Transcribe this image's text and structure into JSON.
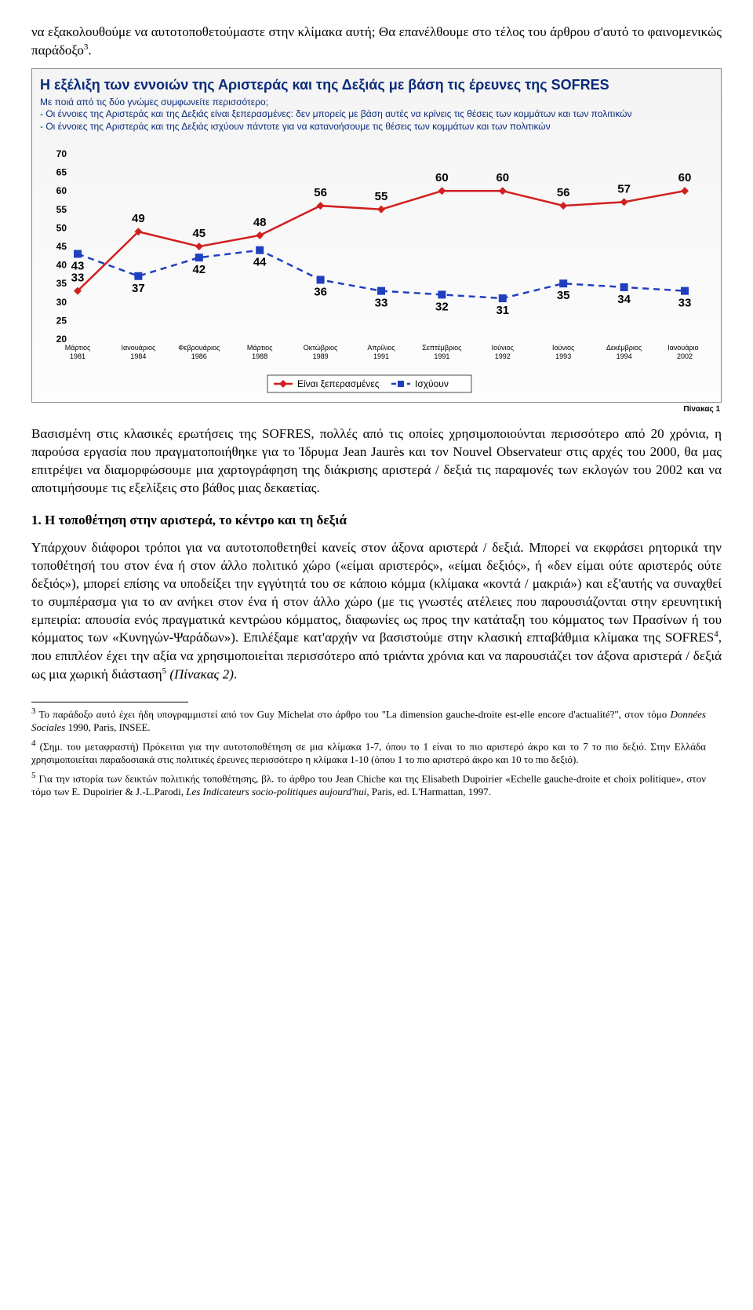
{
  "intro_para": "να εξακολουθούμε να αυτοτοποθετούμαστε στην κλίμακα αυτή; Θα επανέλθουμε στο τέλος του άρθρου σ'αυτό το φαινομενικώς παράδοξο",
  "intro_fn_mark": "3",
  "intro_period": ".",
  "chart": {
    "title": "Η εξέλιξη των εννοιών της Αριστεράς και της Δεξιάς με βάση τις έρευνες της SOFRES",
    "sub1": "Με ποιά από τις δύο γνώμες συμφωνείτε περισσότερο;",
    "sub2": "- Οι έννοιες της Αριστεράς και της Δεξιάς είναι ξεπερασμένες: δεν μπορείς με βάση αυτές να κρίνεις τις θέσεις των κομμάτων και των πολιτικών",
    "sub3": "- Οι έννοιες της Αριστεράς και της Δεξιάς ισχύουν πάντοτε για να κατανοήσουμε τις θέσεις των κομμάτων και των πολιτικών",
    "categories": [
      "Μάρτιος 1981",
      "Ιανουάριος 1984",
      "Φεβρουάριος 1986",
      "Μάρτιος 1988",
      "Οκτώβριος 1989",
      "Απρίλιος 1991",
      "Σεπτέμβριος 1991",
      "Ιούνιος 1992",
      "Ιούνιος 1993",
      "Δεκέμβριος 1994",
      "Ιανουάριος 2002"
    ],
    "series1_name": "Είναι ξεπερασμένες",
    "series1_values": [
      33,
      49,
      45,
      48,
      56,
      55,
      60,
      60,
      56,
      57,
      60
    ],
    "series1_color": "#d21f1f",
    "series2_name": "Ισχύουν",
    "series2_values": [
      43,
      37,
      42,
      44,
      36,
      33,
      32,
      31,
      35,
      34,
      33
    ],
    "series2_color": "#1f3fbf",
    "ymin": 20,
    "ymax": 70,
    "ystep": 5,
    "line_width": 2.5,
    "marker_size": 5,
    "bg": "#ffffff"
  },
  "table_label": "Πίνακας 1",
  "body_para": "Βασισμένη στις κλασικές ερωτήσεις της SOFRES, πολλές από τις οποίες χρησιμοποιούνται περισσότερο από 20 χρόνια, η παρούσα εργασία που πραγματοποιήθηκε για το Ίδρυμα Jean Jaurès και τον Nouvel Observateur στις αρχές του 2000, θα μας επιτρέψει να διαμορφώσουμε μια χαρτογράφηση της διάκρισης αριστερά / δεξιά τις παραμονές των εκλογών του 2002 και να αποτιμήσουμε τις εξελίξεις στο βάθος μιας δεκαετίας.",
  "section_heading": "1.  Η τοποθέτηση στην αριστερά, το κέντρο και τη δεξιά",
  "body2a": "Υπάρχουν διάφοροι τρόποι για να αυτοτοποθετηθεί κανείς στον άξονα αριστερά / δεξιά. Μπορεί να εκφράσει ρητορικά την τοποθέτησή του στον ένα ή στον άλλο πολιτικό χώρο («είμαι αριστερός», «είμαι δεξιός», ή «δεν είμαι ούτε αριστερός ούτε δεξιός»), μπορεί επίσης να υποδείξει την εγγύτητά του σε κάποιο κόμμα (κλίμακα «κοντά / μακριά») και εξ'αυτής να συναχθεί το συμπέρασμα για το αν ανήκει στον ένα ή στον άλλο χώρο (με τις γνωστές ατέλειες που παρουσιάζονται στην ερευνητική εμπειρία: απουσία ενός πραγματικά κεντρώου κόμματος, διαφωνίες ως προς την κατάταξη του κόμματος των Πρασίνων ή του κόμματος των «Κυνηγών-Ψαράδων»). Επιλέξαμε κατ'αρχήν να βασιστούμε στην κλασική επταβάθμια κλίμακα της SOFRES",
  "body2_fn4": "4",
  "body2b": ", που επιπλέον έχει την αξία να χρησιμοποιείται περισσότερο από τριάντα χρόνια και να παρουσιάζει τον άξονα αριστερά / δεξιά ως μια χωρική διάσταση",
  "body2_fn5": "5",
  "body2c_italic": "(Πίνακας 2)",
  "body2d": ".",
  "fn3a": " Το παράδοξο αυτό έχει ήδη υπογραμμιστεί από τον Guy Michelat στο άρθρο του  \"La dimension gauche-droite est-elle encore d'actualité?\", στον τόμο ",
  "fn3b_italic": "Données Sociales",
  "fn3c": " 1990,  Paris, INSEE.",
  "fn4": " (Σημ. του μεταφραστή) Πρόκειται για την αυτοτοποθέτηση σε μια κλίμακα 1-7, όπου το 1 είναι το πιο αριστερό άκρο και το 7 το πιο δεξιό. Στην Ελλάδα χρησιμοποιείται παραδοσιακά στις πολιτικές έρευνες περισσότερο η κλίμακα 1-10 (όπου 1 το πιο αριστερό άκρο και 10 το πιο δεξιό).",
  "fn5a": " Για την ιστορία των δεικτών πολιτικής τοποθέτησης, βλ. το άρθρο του Jean Chiche και της Elisabeth Dupoirier «Echelle gauche-droite et choix politique»,  στον τόμο των E. Dupoirier & J.-L.Parodi, ",
  "fn5b_italic": "Les Indicateurs socio-politiques aujourd'hui",
  "fn5c": ",  Paris, ed. L'Harmattan, 1997."
}
